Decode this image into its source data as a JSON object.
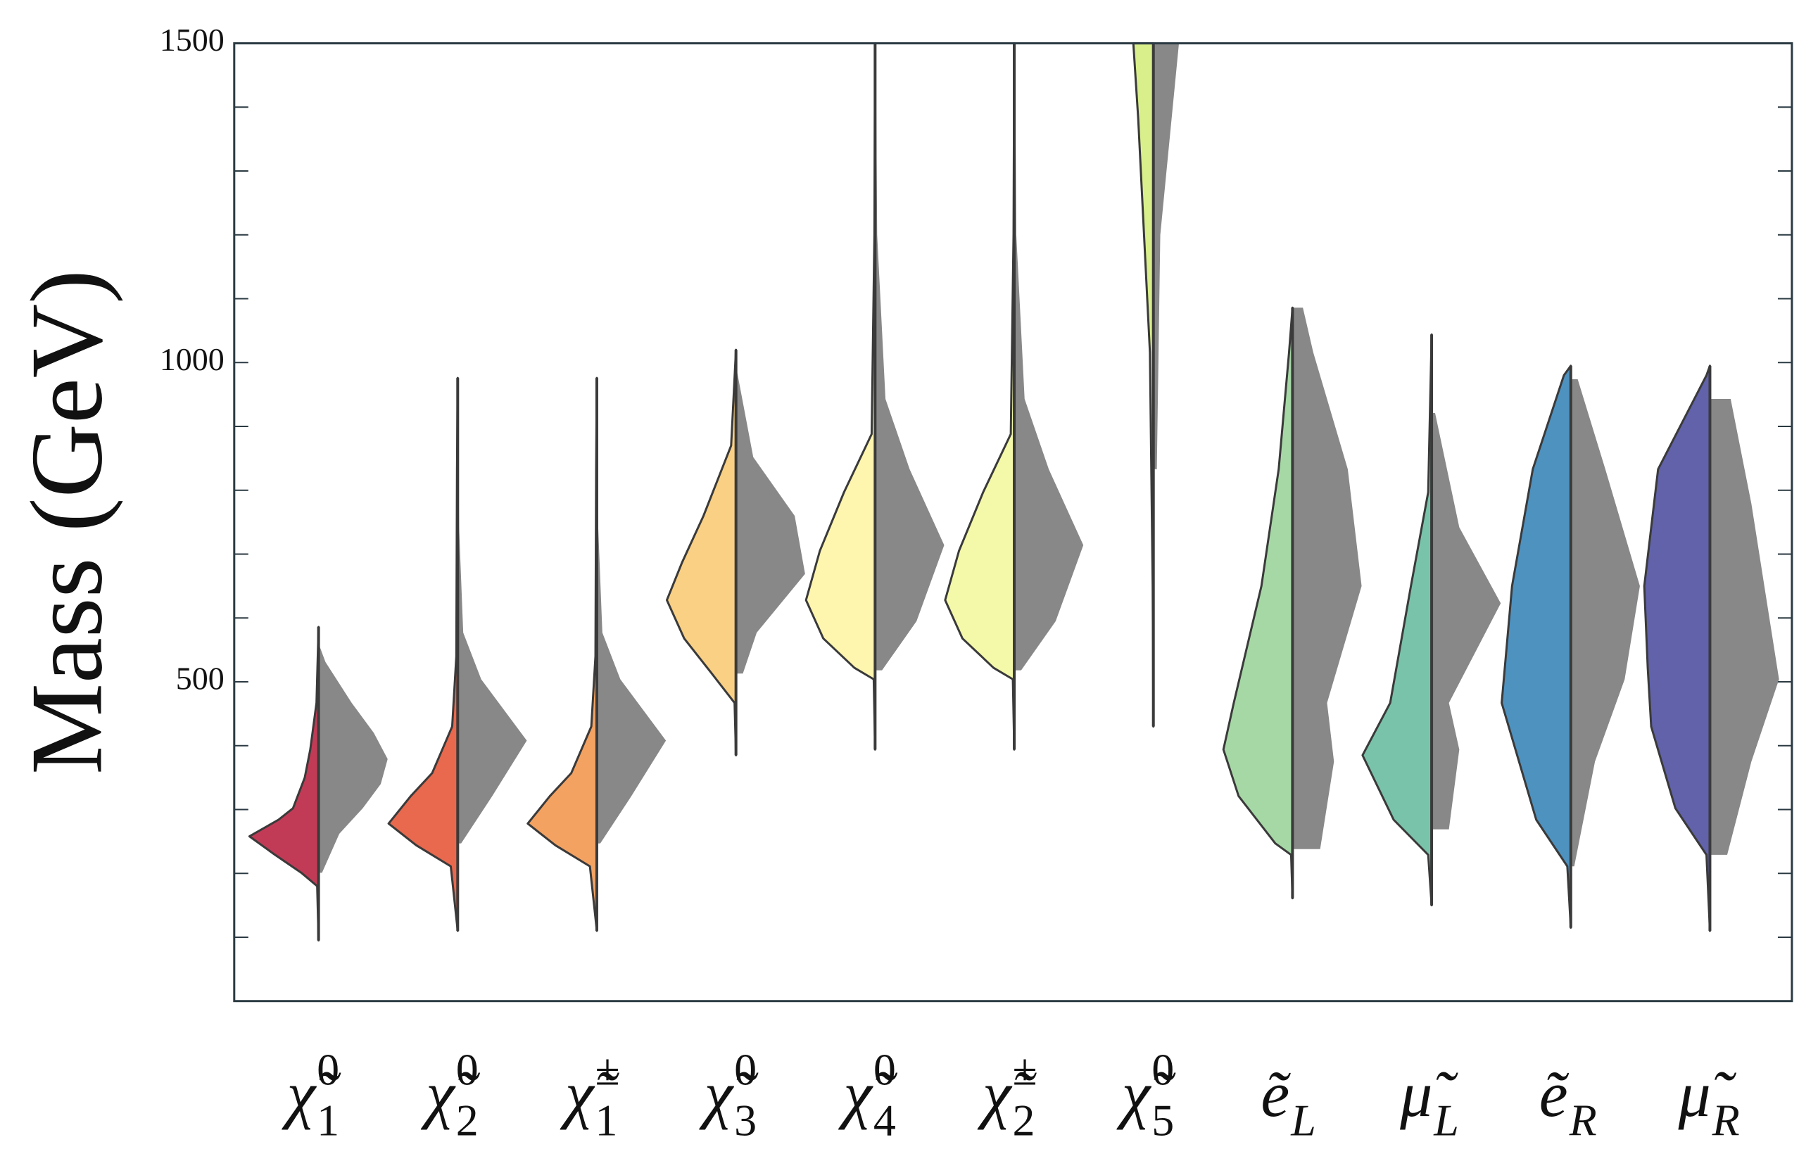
{
  "chart_data": {
    "type": "split-violin",
    "y_label": "Mass (GeV)",
    "ylim": [
      0,
      1500
    ],
    "yticks": [
      500,
      1000,
      1500
    ],
    "yticks_minor": [
      100,
      200,
      300,
      400,
      600,
      700,
      800,
      900,
      1100,
      1200,
      1300,
      1400
    ],
    "categories": [
      {
        "base": "χ̃",
        "sub": "1",
        "sup": "0"
      },
      {
        "base": "χ̃",
        "sub": "2",
        "sup": "0"
      },
      {
        "base": "χ̃",
        "sub": "1",
        "sup": "±"
      },
      {
        "base": "χ̃",
        "sub": "3",
        "sup": "0"
      },
      {
        "base": "χ̃",
        "sub": "4",
        "sup": "0"
      },
      {
        "base": "χ̃",
        "sub": "2",
        "sup": "±"
      },
      {
        "base": "χ̃",
        "sub": "5",
        "sup": "0"
      },
      {
        "base": "ẽ",
        "sub": "L"
      },
      {
        "base": "μ̃",
        "sub": "L"
      },
      {
        "base": "ẽ",
        "sub": "R"
      },
      {
        "base": "μ̃",
        "sub": "R"
      }
    ],
    "right_color": "#888888",
    "violins": [
      {
        "color": "#c23b56",
        "left": {
          "y": [
            95,
            180,
            201,
            229,
            258,
            284,
            302,
            350,
            394,
            467,
            586
          ],
          "w": [
            0,
            0.02,
            0.25,
            0.63,
            1.0,
            0.58,
            0.37,
            0.2,
            0.12,
            0.03,
            0
          ]
        },
        "right": {
          "y": [
            201,
            262,
            302,
            340,
            379,
            420,
            467,
            531,
            560
          ],
          "w": [
            0.05,
            0.3,
            0.64,
            0.9,
            1.0,
            0.8,
            0.48,
            0.1,
            0
          ]
        }
      },
      {
        "color": "#e8694e",
        "left": {
          "y": [
            110,
            211,
            244,
            278,
            321,
            357,
            430,
            540,
            833,
            976
          ],
          "w": [
            0,
            0.1,
            0.6,
            1.0,
            0.68,
            0.37,
            0.08,
            0.02,
            0.01,
            0
          ]
        },
        "right": {
          "y": [
            247,
            321,
            408,
            504,
            577,
            742,
            976
          ],
          "w": [
            0.05,
            0.5,
            1.0,
            0.34,
            0.08,
            0.02,
            0
          ]
        }
      },
      {
        "color": "#f4a262",
        "left": {
          "y": [
            110,
            211,
            244,
            278,
            321,
            357,
            430,
            540,
            833,
            976
          ],
          "w": [
            0,
            0.1,
            0.6,
            1.0,
            0.68,
            0.37,
            0.08,
            0.02,
            0.01,
            0
          ]
        },
        "right": {
          "y": [
            247,
            321,
            408,
            504,
            577,
            742,
            976
          ],
          "w": [
            0.05,
            0.5,
            1.0,
            0.34,
            0.08,
            0.02,
            0
          ]
        }
      },
      {
        "color": "#f9d084",
        "left": {
          "y": [
            385,
            467,
            513,
            568,
            628,
            687,
            760,
            870,
            1020
          ],
          "w": [
            0,
            0.02,
            0.35,
            0.75,
            1.0,
            0.78,
            0.47,
            0.07,
            0
          ]
        },
        "right": {
          "y": [
            513,
            577,
            669,
            760,
            852,
            995
          ],
          "w": [
            0.1,
            0.3,
            1.0,
            0.85,
            0.25,
            0
          ]
        }
      },
      {
        "color": "#fef5ae",
        "left": {
          "y": [
            394,
            504,
            522,
            568,
            628,
            705,
            797,
            888,
            1200,
            1500
          ],
          "w": [
            0,
            0.02,
            0.3,
            0.75,
            1.0,
            0.8,
            0.45,
            0.05,
            0.01,
            0
          ]
        },
        "right": {
          "y": [
            518,
            595,
            714,
            833,
            943,
            1200,
            1500
          ],
          "w": [
            0.1,
            0.6,
            1.0,
            0.5,
            0.15,
            0.03,
            0.01
          ]
        }
      },
      {
        "color": "#f3f9a9",
        "left": {
          "y": [
            394,
            504,
            522,
            568,
            628,
            705,
            797,
            888,
            1200,
            1500
          ],
          "w": [
            0,
            0.02,
            0.3,
            0.75,
            1.0,
            0.8,
            0.45,
            0.05,
            0.01,
            0
          ]
        },
        "right": {
          "y": [
            518,
            595,
            714,
            833,
            943,
            1200,
            1500
          ],
          "w": [
            0.1,
            0.6,
            1.0,
            0.5,
            0.15,
            0.03,
            0.01
          ]
        }
      },
      {
        "color": "#d9ef8b",
        "left": {
          "y": [
            430,
            650,
            1016,
            1383,
            1500
          ],
          "w": [
            0,
            0.01,
            0.05,
            0.22,
            0.29
          ]
        },
        "right": {
          "y": [
            833,
            1200,
            1500
          ],
          "w": [
            0.05,
            0.1,
            0.37
          ]
        }
      },
      {
        "color": "#a6d8a6",
        "left": {
          "y": [
            161,
            229,
            247,
            321,
            394,
            467,
            650,
            833,
            1016,
            1086
          ],
          "w": [
            0,
            0.02,
            0.25,
            0.78,
            1.0,
            0.85,
            0.45,
            0.2,
            0.05,
            0
          ]
        },
        "right": {
          "y": [
            238,
            375,
            467,
            650,
            833,
            1016,
            1086
          ],
          "w": [
            0.4,
            0.6,
            0.5,
            1.0,
            0.8,
            0.3,
            0.15
          ]
        }
      },
      {
        "color": "#79c3aa",
        "left": {
          "y": [
            150,
            229,
            284,
            385,
            467,
            650,
            797,
            1044
          ],
          "w": [
            0,
            0.05,
            0.55,
            1.0,
            0.6,
            0.3,
            0.05,
            0
          ]
        },
        "right": {
          "y": [
            269,
            394,
            467,
            623,
            742,
            921
          ],
          "w": [
            0.25,
            0.4,
            0.25,
            1.0,
            0.4,
            0.05
          ]
        }
      },
      {
        "color": "#4e92c0",
        "left": {
          "y": [
            115,
            211,
            284,
            467,
            650,
            833,
            980,
            995
          ],
          "w": [
            0,
            0.05,
            0.5,
            1.0,
            0.85,
            0.55,
            0.1,
            0
          ]
        },
        "right": {
          "y": [
            211,
            375,
            504,
            650,
            833,
            974
          ],
          "w": [
            0.05,
            0.35,
            0.78,
            1.0,
            0.5,
            0.1
          ]
        }
      },
      {
        "color": "#6162aa",
        "left": {
          "y": [
            110,
            229,
            302,
            430,
            522,
            650,
            833,
            980,
            995
          ],
          "w": [
            0,
            0.05,
            0.5,
            0.85,
            0.9,
            0.95,
            0.75,
            0.05,
            0
          ]
        },
        "right": {
          "y": [
            229,
            375,
            504,
            779,
            943
          ],
          "w": [
            0.25,
            0.6,
            1.0,
            0.6,
            0.3
          ]
        }
      }
    ]
  }
}
